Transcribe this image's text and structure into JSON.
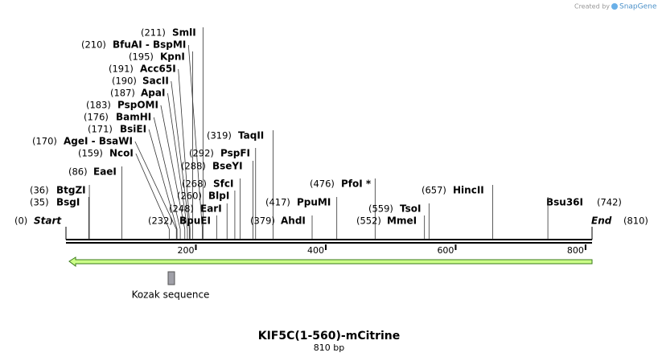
{
  "credit": {
    "prefix": "Created by",
    "brand": "SnapGene"
  },
  "title": "KIF5C(1-560)-mCitrine",
  "length": "810 bp",
  "ends": [
    {
      "position": 0,
      "label": "(0)",
      "name": "Start"
    },
    {
      "position": 810,
      "label": "(810)",
      "name": "End"
    }
  ],
  "sites": [
    {
      "position": 35,
      "label": "(35)",
      "name": "BsgI"
    },
    {
      "position": 36,
      "label": "(36)",
      "name": "BtgZI"
    },
    {
      "position": 86,
      "label": "(86)",
      "name": "EaeI"
    },
    {
      "position": 159,
      "label": "(159)",
      "name": "NcoI"
    },
    {
      "position": 170,
      "label": "(170)",
      "name": "AgeI  - BsaWI"
    },
    {
      "position": 171,
      "label": "(171)",
      "name": "BsiEI"
    },
    {
      "position": 176,
      "label": "(176)",
      "name": "BamHI"
    },
    {
      "position": 183,
      "label": "(183)",
      "name": "PspOMI"
    },
    {
      "position": 187,
      "label": "(187)",
      "name": "ApaI"
    },
    {
      "position": 190,
      "label": "(190)",
      "name": "SacII"
    },
    {
      "position": 191,
      "label": "(191)",
      "name": "Acc65I"
    },
    {
      "position": 195,
      "label": "(195)",
      "name": "KpnI"
    },
    {
      "position": 210,
      "label": "(210)",
      "name": "BfuAI  - BspMI"
    },
    {
      "position": 211,
      "label": "(211)",
      "name": "SmlI"
    },
    {
      "position": 232,
      "label": "(232)",
      "name": "BpuEI"
    },
    {
      "position": 248,
      "label": "(248)",
      "name": "EarI"
    },
    {
      "position": 260,
      "label": "(260)",
      "name": "BlpI"
    },
    {
      "position": 268,
      "label": "(268)",
      "name": "SfcI"
    },
    {
      "position": 288,
      "label": "(288)",
      "name": "BseYI"
    },
    {
      "position": 292,
      "label": "(292)",
      "name": "PspFI"
    },
    {
      "position": 319,
      "label": "(319)",
      "name": "TaqII"
    },
    {
      "position": 379,
      "label": "(379)",
      "name": "AhdI"
    },
    {
      "position": 417,
      "label": "(417)",
      "name": "PpuMI"
    },
    {
      "position": 476,
      "label": "(476)",
      "name": "PfoI *"
    },
    {
      "position": 552,
      "label": "(552)",
      "name": "MmeI"
    },
    {
      "position": 559,
      "label": "(559)",
      "name": "TsoI"
    },
    {
      "position": 657,
      "label": "(657)",
      "name": "HincII"
    },
    {
      "position": 742,
      "label": "(742)",
      "name": "Bsu36I"
    }
  ],
  "ruler": [
    200,
    400,
    600,
    800
  ],
  "features": [
    {
      "name": "Kozak sequence"
    }
  ]
}
